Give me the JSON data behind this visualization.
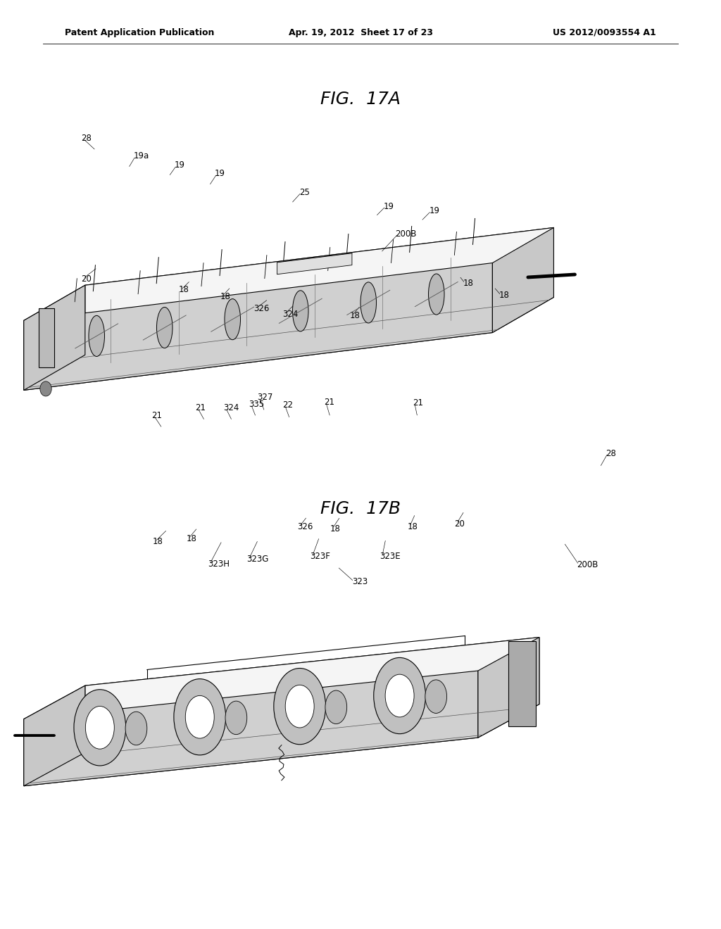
{
  "page_title_left": "Patent Application Publication",
  "page_title_center": "Apr. 19, 2012  Sheet 17 of 23",
  "page_title_right": "US 2012/0093554 A1",
  "fig_17a_title": "FIG.  17A",
  "fig_17b_title": "FIG.  17B",
  "background_color": "#ffffff",
  "text_color": "#000000",
  "header_fontsize": 9,
  "fig_title_fontsize": 18,
  "label_fontsize": 8.5
}
